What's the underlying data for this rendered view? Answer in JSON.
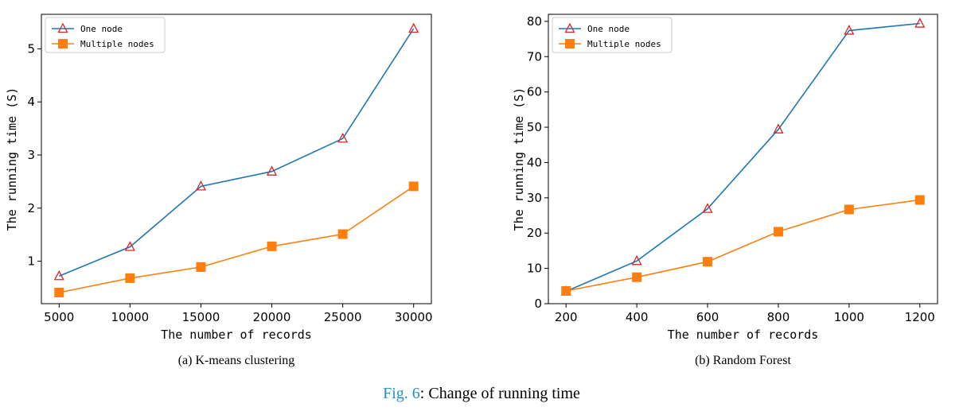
{
  "figure": {
    "label": "Fig. 6",
    "separator": ": ",
    "text": "Change of running time"
  },
  "colors": {
    "one_node": "#1f77b4",
    "one_node_marker": "#d62728",
    "multiple_nodes": "#ff7f0e"
  },
  "chart_data": [
    {
      "type": "line",
      "caption": "(a) K-means clustering",
      "xlabel": "The number of records",
      "ylabel": "The running time (S)",
      "x": [
        5000,
        10000,
        15000,
        20000,
        25000,
        30000
      ],
      "xticks": [
        5000,
        10000,
        15000,
        20000,
        25000,
        30000
      ],
      "yticks": [
        1,
        2,
        3,
        4,
        5
      ],
      "xlim": [
        3750,
        31250
      ],
      "ylim": [
        0.2,
        5.65
      ],
      "legend_position": "top-left",
      "grid": false,
      "series": [
        {
          "name": "One node",
          "marker": "triangle-open",
          "values": [
            0.72,
            1.27,
            2.41,
            2.69,
            3.31,
            5.38
          ]
        },
        {
          "name": "Multiple nodes",
          "marker": "square",
          "values": [
            0.41,
            0.68,
            0.89,
            1.28,
            1.51,
            2.41
          ]
        }
      ]
    },
    {
      "type": "line",
      "caption": "(b) Random Forest",
      "xlabel": "The number of records",
      "ylabel": "The running time (S)",
      "x": [
        200,
        400,
        600,
        800,
        1000,
        1200
      ],
      "xticks": [
        200,
        400,
        600,
        800,
        1000,
        1200
      ],
      "yticks": [
        0,
        10,
        20,
        30,
        40,
        50,
        60,
        70,
        80
      ],
      "xlim": [
        150,
        1250
      ],
      "ylim": [
        0,
        82
      ],
      "legend_position": "top-left",
      "grid": false,
      "series": [
        {
          "name": "One node",
          "marker": "triangle-open",
          "values": [
            3.5,
            12.1,
            26.9,
            49.4,
            77.4,
            79.4
          ]
        },
        {
          "name": "Multiple nodes",
          "marker": "square",
          "values": [
            3.6,
            7.5,
            11.9,
            20.4,
            26.7,
            29.4
          ]
        }
      ]
    }
  ]
}
